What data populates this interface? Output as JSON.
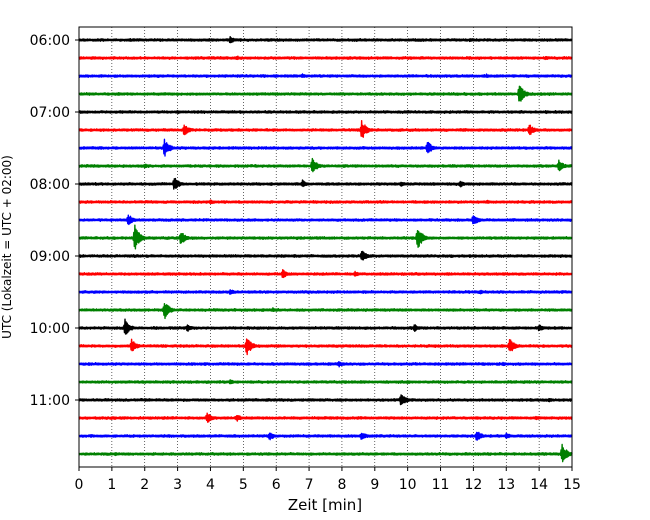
{
  "chart_data": {
    "type": "line",
    "title": "",
    "xlabel": "Zeit  [min]",
    "ylabel": "UTC (Lokalzeit = UTC + 02:00)",
    "xlim": [
      0,
      15
    ],
    "x_ticks": [
      0,
      1,
      2,
      3,
      4,
      5,
      6,
      7,
      8,
      9,
      10,
      11,
      12,
      13,
      14,
      15
    ],
    "y_tick_labels": [
      "06:00",
      "07:00",
      "08:00",
      "09:00",
      "10:00",
      "11:00"
    ],
    "grid": "vertical dotted",
    "trace_colors": [
      "#000000",
      "#ff0000",
      "#0000ff",
      "#008000"
    ],
    "series": [
      {
        "start_time": "06:00",
        "color": "#000000",
        "events": [
          [
            4.6,
            0.45
          ],
          [
            11.9,
            0.25
          ]
        ]
      },
      {
        "start_time": "06:15",
        "color": "#ff0000",
        "events": [
          [
            4.8,
            0.3
          ],
          [
            14.2,
            0.25
          ]
        ]
      },
      {
        "start_time": "06:30",
        "color": "#0000ff",
        "events": [
          [
            6.8,
            0.25
          ],
          [
            12.4,
            0.25
          ]
        ]
      },
      {
        "start_time": "06:45",
        "color": "#008000",
        "events": [
          [
            13.4,
            1.3
          ],
          [
            1.2,
            0.25
          ]
        ]
      },
      {
        "start_time": "07:00",
        "color": "#000000",
        "events": [
          [
            3.0,
            0.25
          ],
          [
            14.2,
            0.2
          ]
        ]
      },
      {
        "start_time": "07:15",
        "color": "#ff0000",
        "events": [
          [
            3.2,
            0.75
          ],
          [
            8.6,
            1.3
          ],
          [
            13.7,
            0.75
          ]
        ]
      },
      {
        "start_time": "07:30",
        "color": "#0000ff",
        "events": [
          [
            2.6,
            1.2
          ],
          [
            10.6,
            0.9
          ]
        ]
      },
      {
        "start_time": "07:45",
        "color": "#008000",
        "events": [
          [
            7.1,
            1.0
          ],
          [
            14.6,
            0.75
          ],
          [
            2.0,
            0.3
          ]
        ]
      },
      {
        "start_time": "08:00",
        "color": "#000000",
        "events": [
          [
            2.9,
            0.9
          ],
          [
            6.8,
            0.5
          ],
          [
            11.6,
            0.4
          ],
          [
            9.8,
            0.3
          ]
        ]
      },
      {
        "start_time": "08:15",
        "color": "#ff0000",
        "events": [
          [
            4.0,
            0.3
          ],
          [
            12.4,
            0.25
          ]
        ]
      },
      {
        "start_time": "08:30",
        "color": "#0000ff",
        "events": [
          [
            1.5,
            0.75
          ],
          [
            12.0,
            0.8
          ]
        ]
      },
      {
        "start_time": "08:45",
        "color": "#008000",
        "events": [
          [
            1.7,
            1.7
          ],
          [
            3.1,
            0.9
          ],
          [
            10.3,
            1.5
          ]
        ]
      },
      {
        "start_time": "09:00",
        "color": "#000000",
        "events": [
          [
            8.6,
            0.8
          ]
        ]
      },
      {
        "start_time": "09:15",
        "color": "#ff0000",
        "events": [
          [
            6.2,
            0.55
          ],
          [
            8.4,
            0.35
          ]
        ]
      },
      {
        "start_time": "09:30",
        "color": "#0000ff",
        "events": [
          [
            4.6,
            0.35
          ],
          [
            12.2,
            0.25
          ]
        ]
      },
      {
        "start_time": "09:45",
        "color": "#008000",
        "events": [
          [
            2.6,
            1.2
          ],
          [
            5.9,
            0.3
          ]
        ]
      },
      {
        "start_time": "10:00",
        "color": "#000000",
        "events": [
          [
            1.4,
            1.1
          ],
          [
            3.3,
            0.5
          ],
          [
            10.2,
            0.5
          ],
          [
            14.0,
            0.45
          ]
        ]
      },
      {
        "start_time": "10:15",
        "color": "#ff0000",
        "events": [
          [
            1.6,
            0.85
          ],
          [
            5.1,
            1.3
          ],
          [
            13.1,
            1.1
          ]
        ]
      },
      {
        "start_time": "10:30",
        "color": "#0000ff",
        "events": [
          [
            7.9,
            0.4
          ],
          [
            12.9,
            0.25
          ]
        ]
      },
      {
        "start_time": "10:45",
        "color": "#008000",
        "events": [
          [
            4.6,
            0.3
          ],
          [
            10.0,
            0.25
          ]
        ]
      },
      {
        "start_time": "11:00",
        "color": "#000000",
        "events": [
          [
            9.8,
            0.9
          ],
          [
            14.3,
            0.25
          ]
        ]
      },
      {
        "start_time": "11:15",
        "color": "#ff0000",
        "events": [
          [
            3.9,
            0.7
          ],
          [
            4.8,
            0.45
          ],
          [
            13.9,
            0.3
          ]
        ]
      },
      {
        "start_time": "11:30",
        "color": "#0000ff",
        "events": [
          [
            5.8,
            0.55
          ],
          [
            8.6,
            0.55
          ],
          [
            12.1,
            0.75
          ],
          [
            13.0,
            0.4
          ]
        ]
      },
      {
        "start_time": "11:45",
        "color": "#008000",
        "events": [
          [
            14.7,
            1.3
          ],
          [
            1.1,
            0.25
          ]
        ]
      }
    ]
  }
}
